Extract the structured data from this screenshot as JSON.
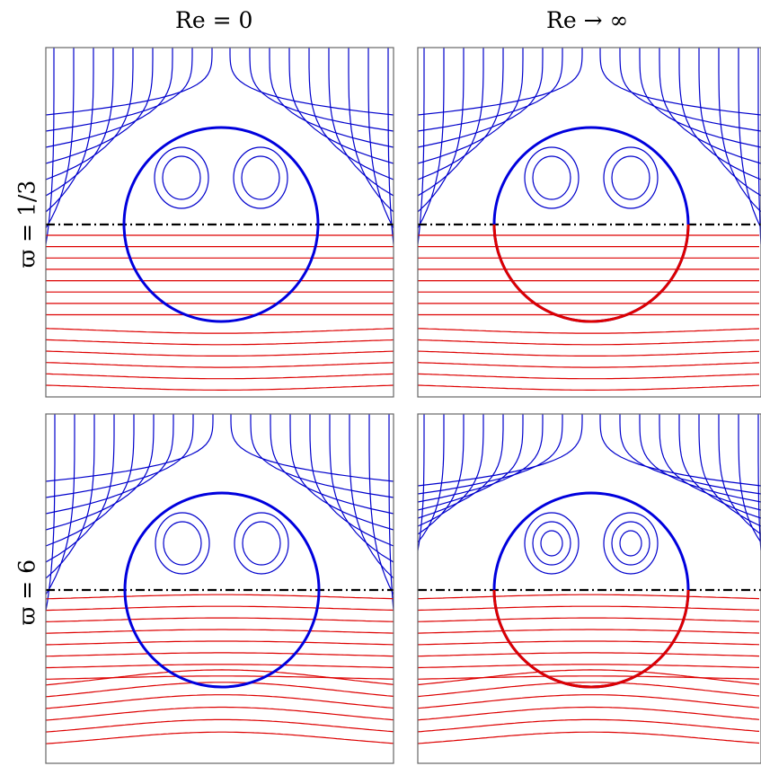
{
  "columns": [
    {
      "re_symbol": "Re",
      "relation": "= 0"
    },
    {
      "re_symbol": "Re",
      "relation": "→ ∞"
    }
  ],
  "rows": [
    {
      "label": "ϖ = 1/3"
    },
    {
      "label": "ϖ = 6"
    }
  ],
  "colors": {
    "upper_streamlines": "#0000cc",
    "lower_streamlines": "#dd0000",
    "sphere": "#0000dd",
    "interface_line": "#000000",
    "frame": "#666666"
  },
  "panels": [
    {
      "row": 0,
      "col": 0
    },
    {
      "row": 0,
      "col": 1
    },
    {
      "row": 1,
      "col": 0
    },
    {
      "row": 1,
      "col": 1
    }
  ]
}
